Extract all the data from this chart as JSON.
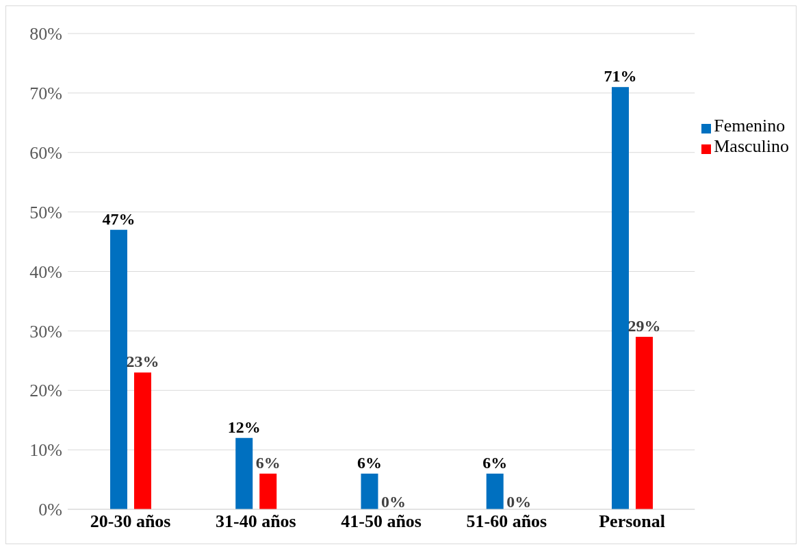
{
  "chart_data": {
    "type": "bar",
    "categories": [
      "20-30 años",
      "31-40 años",
      "41-50 años",
      "51-60 años",
      "Personal"
    ],
    "series": [
      {
        "name": "Femenino",
        "color": "#0070c0",
        "values": [
          47,
          12,
          6,
          6,
          71
        ],
        "value_labels": [
          "47%",
          "12%",
          "6%",
          "6%",
          "71%"
        ]
      },
      {
        "name": "Masculino",
        "color": "#ff0000",
        "values": [
          23,
          6,
          0,
          0,
          29
        ],
        "value_labels": [
          "23%",
          "6%",
          "0%",
          "0%",
          "29%"
        ]
      }
    ],
    "ylim": [
      0,
      80
    ],
    "yticks": [
      {
        "value": 0,
        "label": "0%"
      },
      {
        "value": 10,
        "label": "10%"
      },
      {
        "value": 20,
        "label": "20%"
      },
      {
        "value": 30,
        "label": "30%"
      },
      {
        "value": 40,
        "label": "40%"
      },
      {
        "value": 50,
        "label": "50%"
      },
      {
        "value": 60,
        "label": "60%"
      },
      {
        "value": 70,
        "label": "70%"
      },
      {
        "value": 80,
        "label": "80%"
      }
    ],
    "grid": "y",
    "legend": "right"
  }
}
